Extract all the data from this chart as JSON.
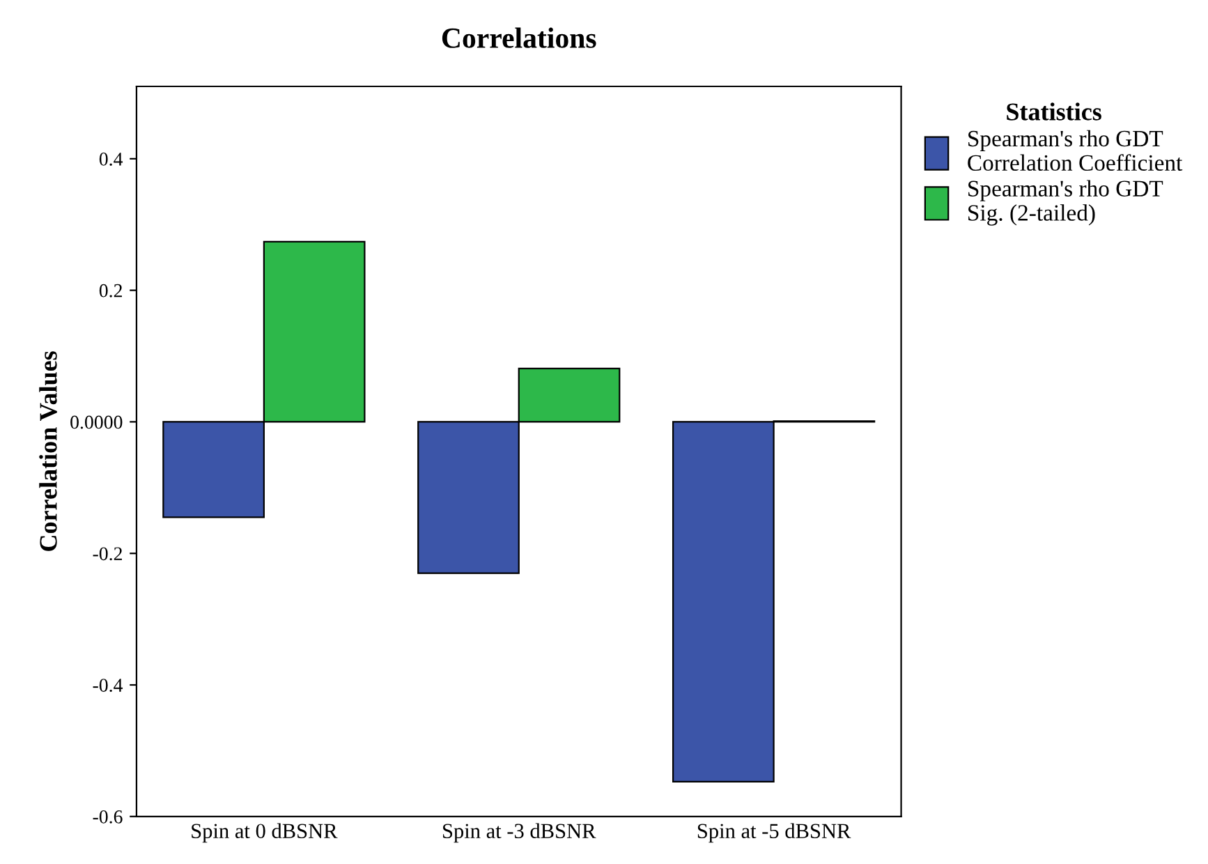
{
  "chart_data": {
    "type": "bar",
    "title": "Correlations",
    "ylabel": "Correlation Values",
    "legend_title": "Statistics",
    "categories": [
      "Spin at 0 dBSNR",
      "Spin at -3 dBSNR",
      "Spin at -5 dBSNR"
    ],
    "series": [
      {
        "name": "Spearman's rho GDT\nCorrelation Coefficient",
        "color": "#3c55a8",
        "values": [
          -0.145,
          -0.23,
          -0.547
        ]
      },
      {
        "name": "Spearman's rho GDT\nSig. (2-tailed)",
        "color": "#2db84a",
        "values": [
          0.274,
          0.081,
          0.001
        ]
      }
    ],
    "ylim": [
      -0.6,
      0.51
    ],
    "yticks": [
      -0.6,
      -0.4,
      -0.2,
      {
        "value": 0,
        "label": "0.0000"
      },
      0.2,
      0.4
    ],
    "grid": false,
    "legend": "right"
  }
}
